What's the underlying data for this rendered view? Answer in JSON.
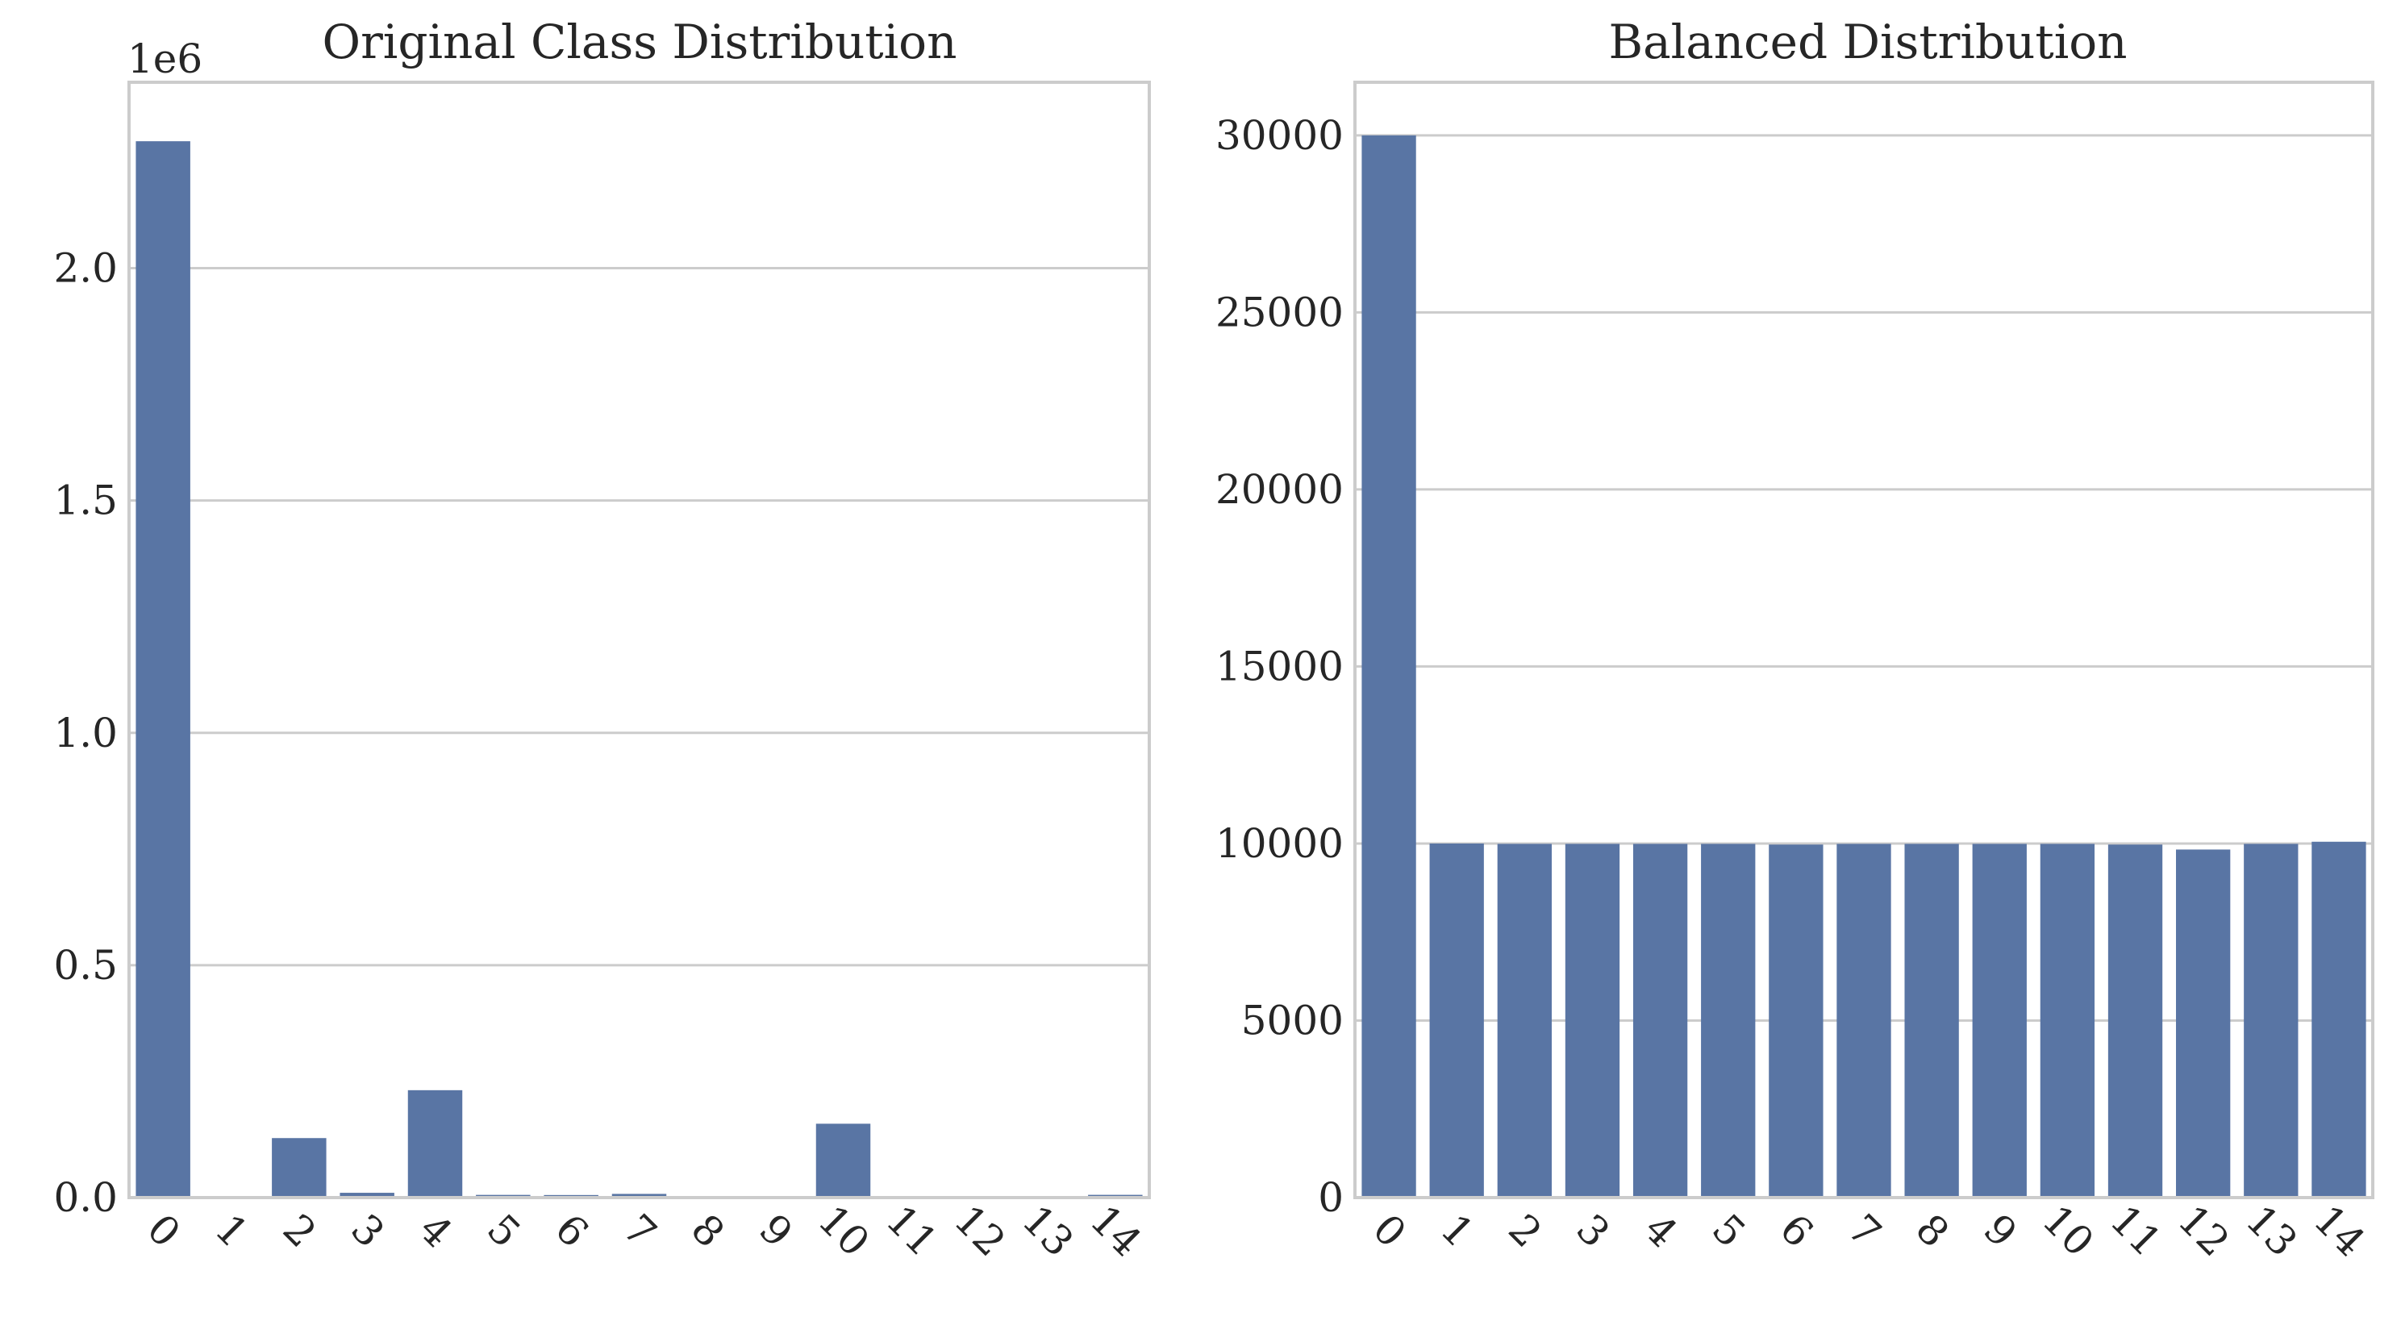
{
  "chart_data": [
    {
      "type": "bar",
      "title": "Original Class Distribution",
      "xlabel": "",
      "ylabel": "",
      "categories": [
        "0",
        "1",
        "2",
        "3",
        "4",
        "5",
        "6",
        "7",
        "8",
        "9",
        "10",
        "11",
        "12",
        "13",
        "14"
      ],
      "values": [
        2273097,
        1966,
        128027,
        10293,
        231073,
        5796,
        5499,
        7938,
        36,
        652,
        158930,
        11,
        1507,
        21,
        5897
      ],
      "ylim": [
        0,
        2400000
      ],
      "yticks": [
        0,
        500000,
        1000000,
        1500000,
        2000000
      ],
      "ytick_labels": [
        "0.0",
        "0.5",
        "1.0",
        "1.5",
        "2.0"
      ],
      "y_offset_label": "1e6",
      "grid": "horizontal",
      "bar_color": "#5975a4"
    },
    {
      "type": "bar",
      "title": "Balanced Distribution",
      "xlabel": "",
      "ylabel": "",
      "categories": [
        "0",
        "1",
        "2",
        "3",
        "4",
        "5",
        "6",
        "7",
        "8",
        "9",
        "10",
        "11",
        "12",
        "13",
        "14"
      ],
      "values": [
        30000,
        10000,
        9990,
        9990,
        9990,
        9990,
        9970,
        9990,
        9990,
        9990,
        9990,
        9970,
        9830,
        9990,
        10050
      ],
      "ylim": [
        0,
        31500
      ],
      "yticks": [
        0,
        5000,
        10000,
        15000,
        20000,
        25000,
        30000
      ],
      "ytick_labels": [
        "0",
        "5000",
        "10000",
        "15000",
        "20000",
        "25000",
        "30000"
      ],
      "y_offset_label": "",
      "grid": "horizontal",
      "bar_color": "#5975a4"
    }
  ]
}
